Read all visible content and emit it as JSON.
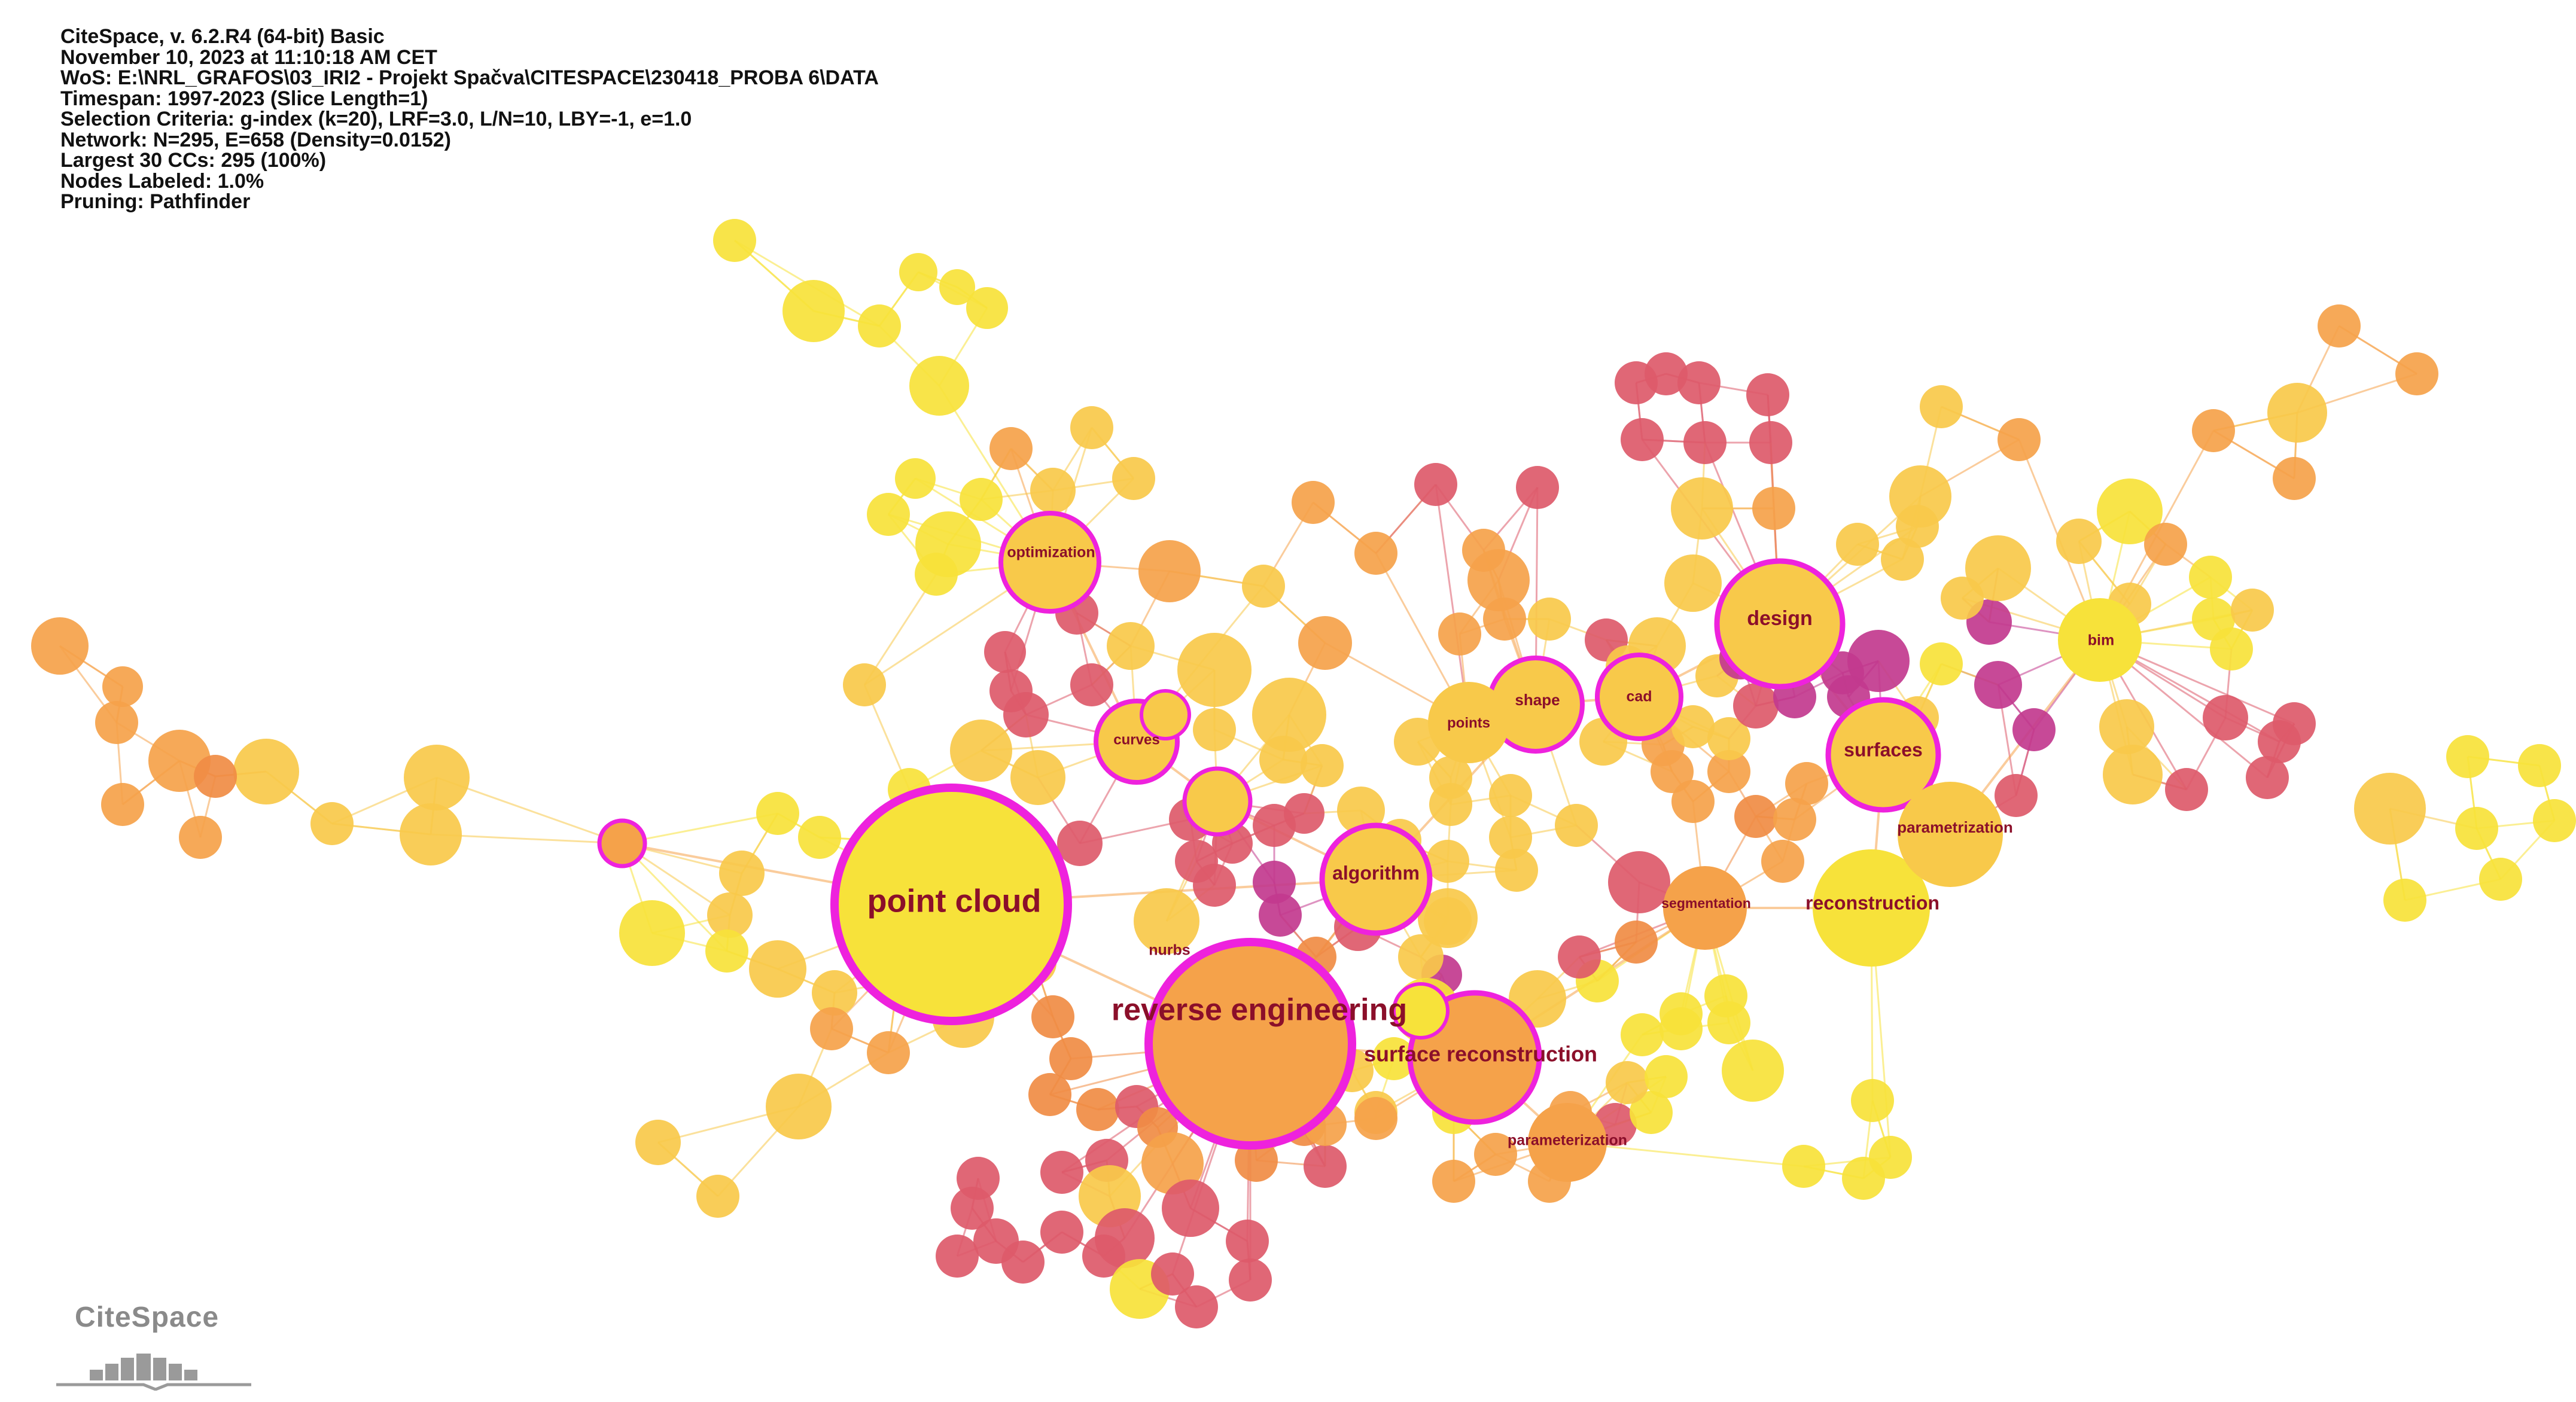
{
  "header": {
    "lines": [
      "CiteSpace, v. 6.2.R4 (64-bit) Basic",
      "November 10, 2023 at 11:10:18 AM CET",
      "WoS: E:\\NRL_GRAFOS\\03_IRI2 - Projekt Spačva\\CITESPACE\\230418_PROBA 6\\DATA",
      "Timespan: 1997-2023 (Slice Length=1)",
      "Selection Criteria: g-index (k=20), LRF=3.0, L/N=10, LBY=-1, e=1.0",
      "Network: N=295, E=658 (Density=0.0152)",
      "Largest 30 CCs: 295 (100%)",
      "Nodes Labeled: 1.0%",
      "Pruning: Pathfinder"
    ]
  },
  "keywords": {
    "point_cloud": "point cloud",
    "reverse_engineering": "reverse engineering",
    "surface_reconstruction": "surface reconstruction",
    "design": "design",
    "surfaces": "surfaces",
    "reconstruction": "reconstruction",
    "algorithm": "algorithm",
    "optimization": "optimization",
    "curves": "curves",
    "shape": "shape",
    "cad": "cad",
    "points": "points",
    "bim": "bim",
    "nurbs": "nurbs",
    "segmentation": "segmentation",
    "parametrization": "parametrization",
    "parameterization": "parameterization"
  },
  "logo": {
    "text": "CiteSpace"
  },
  "colors": {
    "yellow": "#f7e23a",
    "gold": "#f8c94a",
    "orange": "#f5a24a",
    "dark_orange": "#f08c44",
    "red": "#dd5a6a",
    "magenta": "#c23a8e",
    "ring": "#ee22dd",
    "label": "#8b0f2a"
  }
}
